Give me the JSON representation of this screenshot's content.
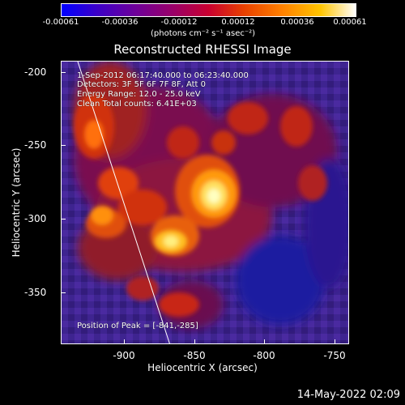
{
  "colorbar": {
    "ticks": [
      "-0.00061",
      "-0.00036",
      "-0.00012",
      "0.00012",
      "0.00036",
      "0.00061"
    ],
    "units": "(photons cm⁻² s⁻¹ asec⁻²)"
  },
  "plot": {
    "title": "Reconstructed RHESSI Image",
    "xlabel": "Heliocentric X (arcsec)",
    "ylabel": "Heliocentric Y (arcsec)",
    "xticks": [
      "-900",
      "-850",
      "-800",
      "-750"
    ],
    "yticks": [
      "-200",
      "-250",
      "-300",
      "-350"
    ]
  },
  "info": {
    "time_range": "1-Sep-2012 06:17:40.000 to 06:23:40.000",
    "detectors": "Detectors: 3F 5F 6F 7F 8F, Att 0",
    "energy": "Energy Range: 12.0 - 25.0 keV",
    "method": "Clean    Total counts: 6.41E+03",
    "peak": "Position of Peak = [-841,-285]"
  },
  "timestamp": "14-May-2022 02:09"
}
